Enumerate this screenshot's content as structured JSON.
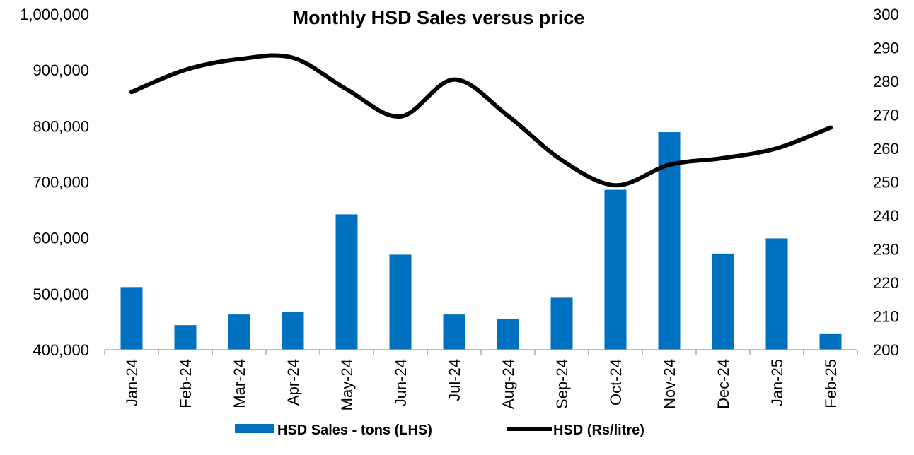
{
  "chart_data": {
    "type": "bar",
    "title": "Monthly HSD Sales versus price",
    "categories": [
      "Jan-24",
      "Feb-24",
      "Mar-24",
      "Apr-24",
      "May-24",
      "Jun-24",
      "Jul-24",
      "Aug-24",
      "Sep-24",
      "Oct-24",
      "Nov-24",
      "Dec-24",
      "Jan-25",
      "Feb-25"
    ],
    "series": [
      {
        "name": "HSD Sales - tons (LHS)",
        "kind": "bar",
        "axis": "left",
        "color": "#0070C0",
        "values": [
          512000,
          444000,
          463000,
          468000,
          642000,
          570000,
          463000,
          455000,
          493000,
          686000,
          789000,
          572000,
          599000,
          428000
        ]
      },
      {
        "name": "HSD (Rs/litre)",
        "kind": "line",
        "axis": "right",
        "color": "#000000",
        "values": [
          276.8,
          283.4,
          286.6,
          287.0,
          277.6,
          269.5,
          280.5,
          269.7,
          256.5,
          249.0,
          255.1,
          257.1,
          260.0,
          266.2
        ]
      }
    ],
    "y_left": {
      "ylim": [
        400000,
        1000000
      ],
      "ticks": [
        400000,
        500000,
        600000,
        700000,
        800000,
        900000,
        1000000
      ],
      "tick_labels": [
        "400,000",
        "500,000",
        "600,000",
        "700,000",
        "800,000",
        "900,000",
        "1,000,000"
      ]
    },
    "y_right": {
      "ylim": [
        200,
        300
      ],
      "ticks": [
        200,
        210,
        220,
        230,
        240,
        250,
        260,
        270,
        280,
        290,
        300
      ],
      "tick_labels": [
        "200",
        "210",
        "220",
        "230",
        "240",
        "250",
        "260",
        "270",
        "280",
        "290",
        "300"
      ]
    },
    "grid": false,
    "legend_position": "bottom"
  }
}
